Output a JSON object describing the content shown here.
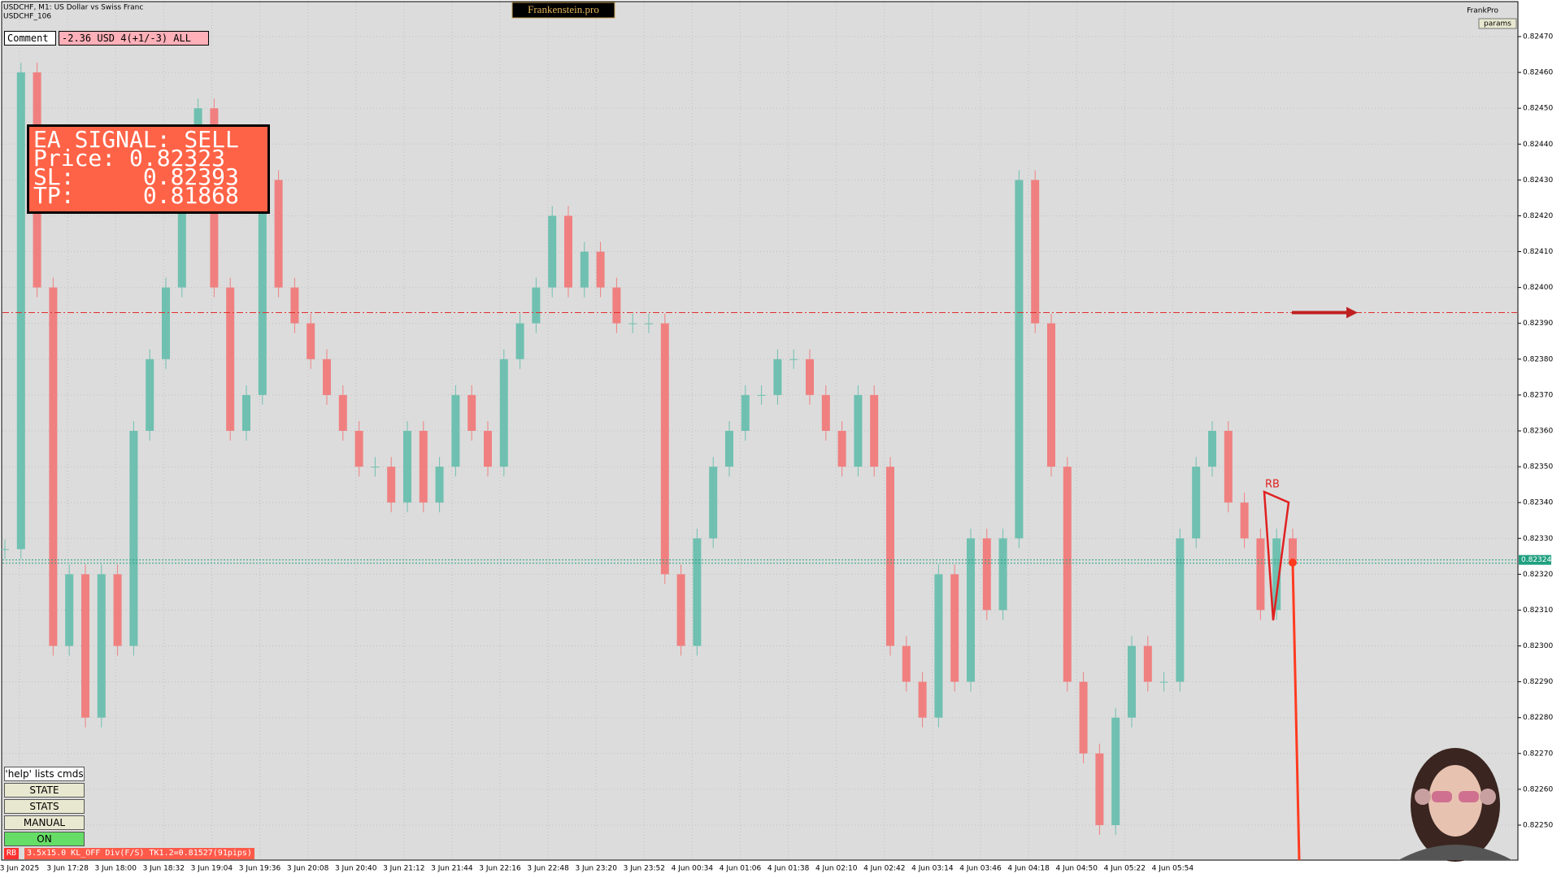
{
  "header": {
    "symbol": "USDCHF, M1:  US Dollar vs Swiss Franc",
    "account": "USDCHF_106",
    "brand": "Frankenstein.pro",
    "user": "FrankPro",
    "params": "params"
  },
  "comment": {
    "label": "Comment",
    "value": "-2.36 USD 4(+1/-3) ALL"
  },
  "signal": {
    "lines": [
      "EA SIGNAL: SELL",
      "Price: 0.82323",
      "SL:     0.82393",
      "TP:     0.81868"
    ]
  },
  "buttons": [
    "'help' lists cmds",
    "STATE",
    "STATS",
    "MANUAL",
    "ON"
  ],
  "status": {
    "tag": "RB",
    "text": "3.5x15.0 KL_OFF Div(F/S) TK1.2=0.81527(91pips)"
  },
  "pattern_label": "RB",
  "chart": {
    "price_ticks": [
      {
        "value": 0.8247,
        "label": "0.82470"
      },
      {
        "value": 0.8246,
        "label": "0.82460"
      },
      {
        "value": 0.8245,
        "label": "0.82450"
      },
      {
        "value": 0.8244,
        "label": "0.82440"
      },
      {
        "value": 0.8243,
        "label": "0.82430"
      },
      {
        "value": 0.8242,
        "label": "0.82420"
      },
      {
        "value": 0.8241,
        "label": "0.82410"
      },
      {
        "value": 0.824,
        "label": "0.82400"
      },
      {
        "value": 0.8239,
        "label": "0.82390"
      },
      {
        "value": 0.8238,
        "label": "0.82380"
      },
      {
        "value": 0.8237,
        "label": "0.82370"
      },
      {
        "value": 0.8236,
        "label": "0.82360"
      },
      {
        "value": 0.8235,
        "label": "0.82350"
      },
      {
        "value": 0.8234,
        "label": "0.82340"
      },
      {
        "value": 0.8233,
        "label": "0.82330"
      },
      {
        "value": 0.8232,
        "label": "0.82320"
      },
      {
        "value": 0.8231,
        "label": "0.82310"
      },
      {
        "value": 0.823,
        "label": "0.82300"
      },
      {
        "value": 0.8229,
        "label": "0.82290"
      },
      {
        "value": 0.8228,
        "label": "0.82280"
      },
      {
        "value": 0.8227,
        "label": "0.82270"
      },
      {
        "value": 0.8226,
        "label": "0.82260"
      },
      {
        "value": 0.8225,
        "label": "0.82250"
      }
    ],
    "time_labels": [
      "3 Jun 2025",
      "3 Jun 17:28",
      "3 Jun 18:00",
      "3 Jun 18:32",
      "3 Jun 19:04",
      "3 Jun 19:36",
      "3 Jun 20:08",
      "3 Jun 20:40",
      "3 Jun 21:12",
      "3 Jun 21:44",
      "3 Jun 22:16",
      "3 Jun 22:48",
      "3 Jun 23:20",
      "3 Jun 23:52",
      "4 Jun 00:34",
      "4 Jun 01:06",
      "4 Jun 01:38",
      "4 Jun 02:10",
      "4 Jun 02:42",
      "4 Jun 03:14",
      "4 Jun 03:46",
      "4 Jun 04:18",
      "4 Jun 04:50",
      "4 Jun 05:22",
      "4 Jun 05:54"
    ],
    "closes": [
      0.82327,
      0.8246,
      0.824,
      0.823,
      0.8232,
      0.8228,
      0.8232,
      0.823,
      0.8236,
      0.8238,
      0.824,
      0.8243,
      0.8245,
      0.824,
      0.8236,
      0.8237,
      0.8243,
      0.824,
      0.8239,
      0.8238,
      0.8237,
      0.8236,
      0.8235,
      0.8235,
      0.8234,
      0.8236,
      0.8234,
      0.8235,
      0.8237,
      0.8236,
      0.8235,
      0.8238,
      0.8239,
      0.824,
      0.8242,
      0.824,
      0.8241,
      0.824,
      0.8239,
      0.8239,
      0.8239,
      0.8232,
      0.823,
      0.8233,
      0.8235,
      0.8236,
      0.8237,
      0.8237,
      0.8238,
      0.8238,
      0.8237,
      0.8236,
      0.8235,
      0.8237,
      0.8235,
      0.823,
      0.8229,
      0.8228,
      0.8232,
      0.8229,
      0.8233,
      0.8231,
      0.8233,
      0.8243,
      0.8239,
      0.8235,
      0.8229,
      0.8227,
      0.8225,
      0.8228,
      0.823,
      0.8229,
      0.8229,
      0.8233,
      0.8235,
      0.8236,
      0.8234,
      0.8233,
      0.8231,
      0.8233,
      0.82324
    ],
    "stop_loss": 0.82393,
    "bid": 0.82324
  }
}
